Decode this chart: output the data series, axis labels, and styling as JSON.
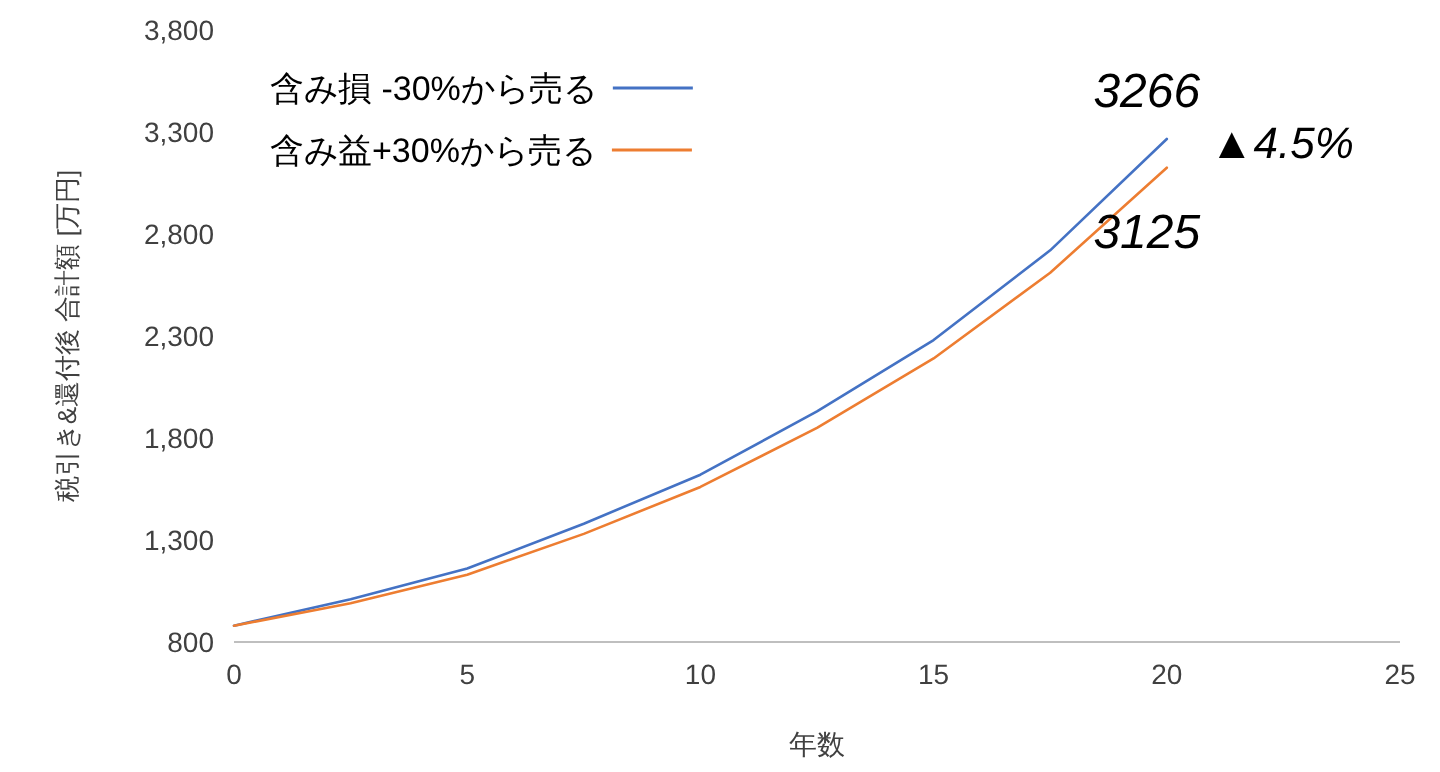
{
  "chart_data": {
    "type": "line",
    "xlabel": "年数",
    "ylabel": "税引き&還付後 合計額 [万円]",
    "x": [
      0,
      2.5,
      5,
      7.5,
      10,
      12.5,
      15,
      17.5,
      20
    ],
    "series": [
      {
        "name": "含み損 -30%から売る",
        "color": "#4472c4",
        "values": [
          880,
          1010,
          1160,
          1380,
          1620,
          1930,
          2280,
          2720,
          3266
        ]
      },
      {
        "name": "含み益+30%から売る",
        "color": "#ed7d31",
        "values": [
          880,
          990,
          1130,
          1330,
          1560,
          1850,
          2190,
          2610,
          3125
        ]
      }
    ],
    "xlim": [
      0,
      25
    ],
    "ylim": [
      800,
      3800
    ],
    "xticks": [
      0,
      5,
      10,
      15,
      20,
      25
    ],
    "yticks": [
      {
        "value": 800,
        "label": "800"
      },
      {
        "value": 1300,
        "label": "1,300"
      },
      {
        "value": 1800,
        "label": "1,800"
      },
      {
        "value": 2300,
        "label": "2,300"
      },
      {
        "value": 2800,
        "label": "2,800"
      },
      {
        "value": 3300,
        "label": "3,300"
      },
      {
        "value": 3800,
        "label": "3,800"
      }
    ],
    "legend": "top left",
    "annotations": [
      {
        "text": "3266",
        "x": 20,
        "y": 3266
      },
      {
        "text": "3125",
        "x": 20,
        "y": 3125
      },
      "▲4.5%"
    ]
  }
}
